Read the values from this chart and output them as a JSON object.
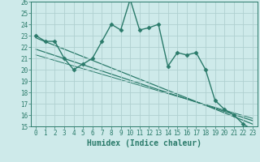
{
  "title": "",
  "xlabel": "Humidex (Indice chaleur)",
  "background_color": "#ceeaea",
  "grid_color": "#b0d0d0",
  "line_color": "#2a7a6a",
  "xlim": [
    -0.5,
    23.5
  ],
  "ylim": [
    15,
    26
  ],
  "xticks": [
    0,
    1,
    2,
    3,
    4,
    5,
    6,
    7,
    8,
    9,
    10,
    11,
    12,
    13,
    14,
    15,
    16,
    17,
    18,
    19,
    20,
    21,
    22,
    23
  ],
  "yticks": [
    15,
    16,
    17,
    18,
    19,
    20,
    21,
    22,
    23,
    24,
    25,
    26
  ],
  "series1_x": [
    0,
    1,
    2,
    3,
    4,
    5,
    6,
    7,
    8,
    9,
    10,
    11,
    12,
    13,
    14,
    15,
    16,
    17,
    18,
    19,
    20,
    21,
    22,
    23
  ],
  "series1_y": [
    23.0,
    22.5,
    22.5,
    21.0,
    20.0,
    20.5,
    21.0,
    22.5,
    24.0,
    23.5,
    26.2,
    23.5,
    23.7,
    24.0,
    20.3,
    21.5,
    21.3,
    21.5,
    20.0,
    17.3,
    16.5,
    16.0,
    15.2,
    14.7
  ],
  "trend1_x": [
    0,
    23
  ],
  "trend1_y": [
    22.8,
    15.2
  ],
  "trend2_x": [
    0,
    23
  ],
  "trend2_y": [
    21.8,
    15.5
  ],
  "trend3_x": [
    0,
    23
  ],
  "trend3_y": [
    21.3,
    15.7
  ],
  "tick_fontsize": 5.5,
  "xlabel_fontsize": 7.0
}
